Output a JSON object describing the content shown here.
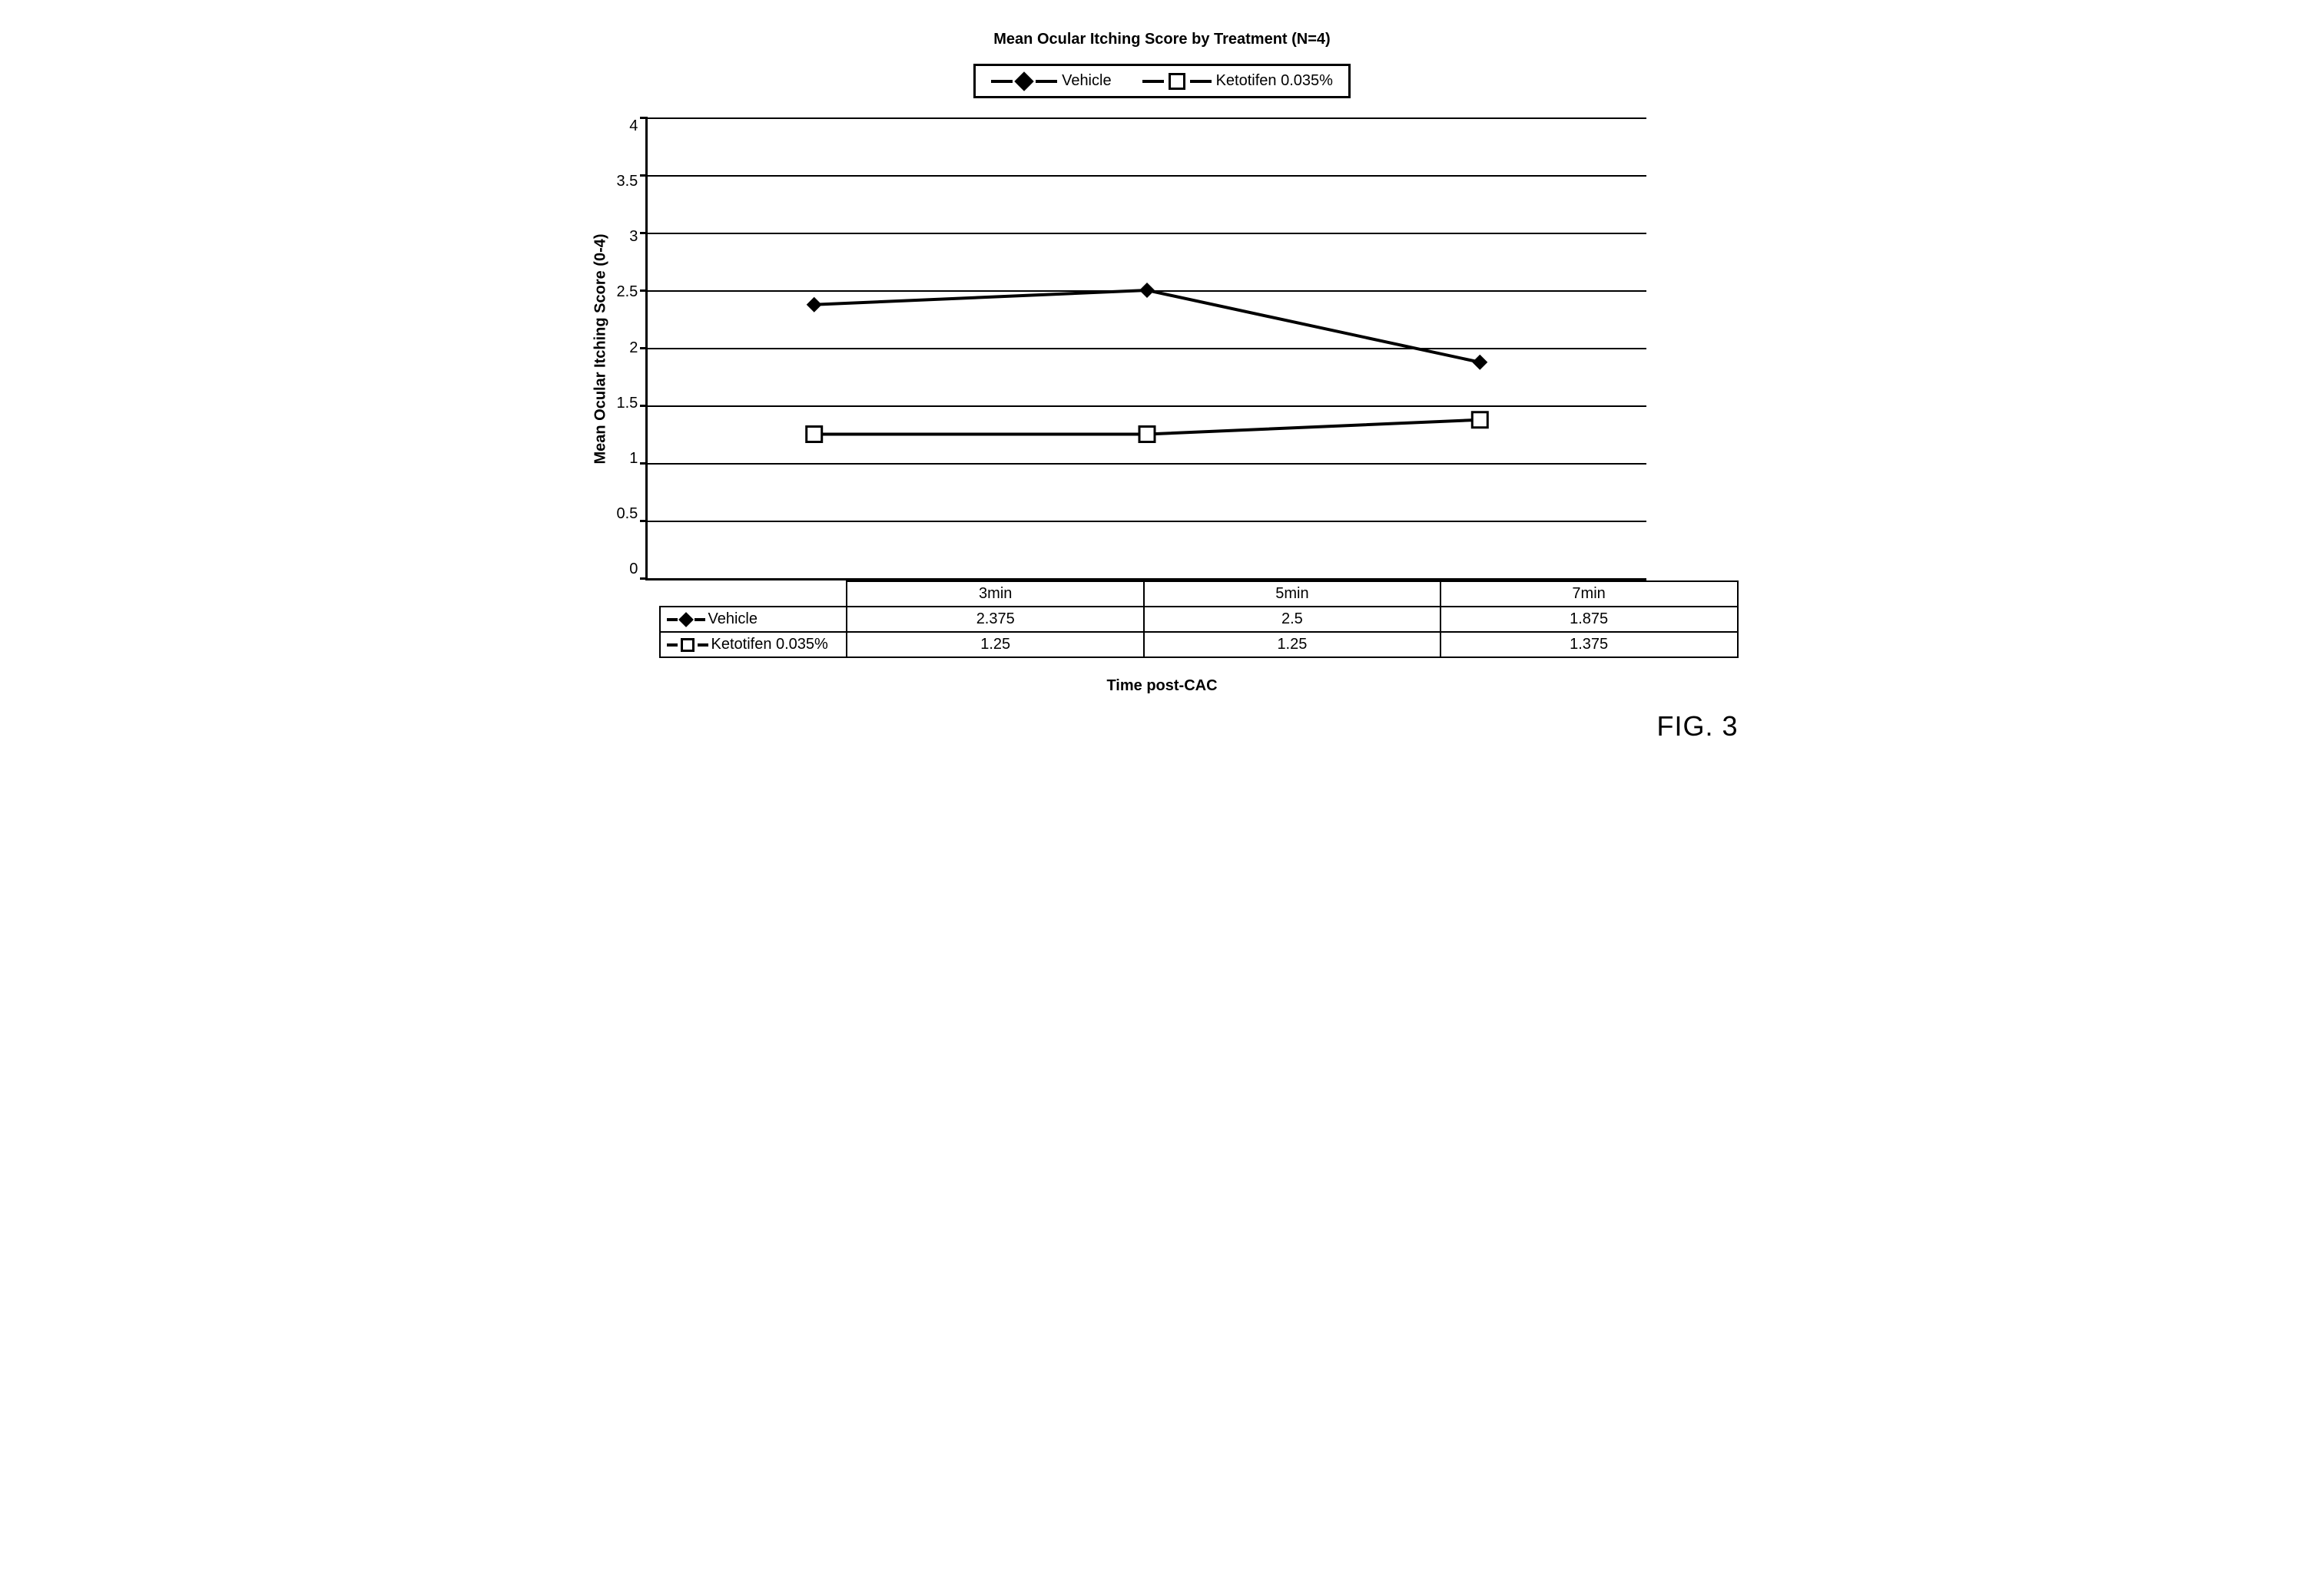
{
  "chart": {
    "type": "line",
    "title": "Mean Ocular Itching Score by Treatment (N=4)",
    "title_fontsize": 20,
    "title_fontweight": "bold",
    "xlabel": "Time post-CAC",
    "ylabel": "Mean Ocular Itching Score (0-4)",
    "label_fontsize": 20,
    "label_fontweight": "bold",
    "background_color": "#ffffff",
    "grid_color": "#000000",
    "axis_color": "#000000",
    "line_width": 4,
    "marker_size": 20,
    "ylim": [
      0,
      4
    ],
    "ytick_step": 0.5,
    "yticks": [
      "4",
      "3.5",
      "3",
      "2.5",
      "2",
      "1.5",
      "1",
      "0.5",
      "0"
    ],
    "categories": [
      "3min",
      "5min",
      "7min"
    ],
    "x_positions_pct": [
      16.67,
      50,
      83.33
    ],
    "series": [
      {
        "name": "Vehicle",
        "marker": "diamond-filled",
        "marker_fill": "#000000",
        "line_color": "#000000",
        "values": [
          2.375,
          2.5,
          1.875
        ]
      },
      {
        "name": "Ketotifen 0.035%",
        "marker": "square-open",
        "marker_fill": "#ffffff",
        "marker_stroke": "#000000",
        "line_color": "#000000",
        "values": [
          1.25,
          1.25,
          1.375
        ]
      }
    ],
    "legend_position": "top-center",
    "figure_label": "FIG. 3"
  }
}
